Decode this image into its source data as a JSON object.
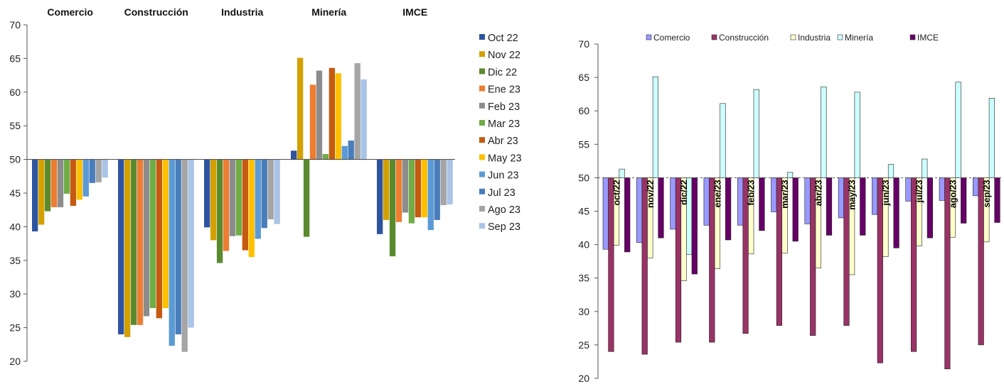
{
  "chart_data": [
    {
      "type": "bar",
      "title": "",
      "baseline": 50,
      "ylim": [
        20,
        70
      ],
      "yticks": [
        "70",
        "65",
        "60",
        "55",
        "50",
        "45",
        "40",
        "35",
        "30",
        "25",
        "20"
      ],
      "categories": [
        "Comercio",
        "Construcción",
        "Industria",
        "Minería",
        "IMCE"
      ],
      "legend_position": "right",
      "series": [
        {
          "name": "Oct 22",
          "color": "#2e54a0",
          "values": [
            39.3,
            24.0,
            39.9,
            51.3,
            38.9
          ]
        },
        {
          "name": "Nov 22",
          "color": "#d4a000",
          "values": [
            40.3,
            23.6,
            38.0,
            65.1,
            41.0
          ]
        },
        {
          "name": "Dic 22",
          "color": "#5b8a2e",
          "values": [
            42.3,
            25.4,
            34.6,
            38.5,
            35.6
          ]
        },
        {
          "name": "Ene 23",
          "color": "#ed7d31",
          "values": [
            42.9,
            25.4,
            36.4,
            61.1,
            40.7
          ]
        },
        {
          "name": "Feb 23",
          "color": "#8c8c8c",
          "values": [
            42.9,
            26.7,
            38.6,
            63.2,
            42.1
          ]
        },
        {
          "name": "Mar 23",
          "color": "#70ad47",
          "values": [
            44.9,
            27.9,
            38.7,
            50.8,
            40.5
          ]
        },
        {
          "name": "Abr 23",
          "color": "#c55a11",
          "values": [
            43.1,
            26.4,
            36.5,
            63.6,
            41.4
          ]
        },
        {
          "name": "May 23",
          "color": "#ffc000",
          "values": [
            44.0,
            27.9,
            35.5,
            62.8,
            41.4
          ]
        },
        {
          "name": "Jun 23",
          "color": "#5b9bd5",
          "values": [
            44.5,
            22.3,
            38.2,
            52.0,
            39.5
          ]
        },
        {
          "name": "Jul 23",
          "color": "#4a7dbb",
          "values": [
            46.5,
            24.0,
            39.8,
            52.8,
            41.0
          ]
        },
        {
          "name": "Ago 23",
          "color": "#a5a5a5",
          "values": [
            46.6,
            21.4,
            41.1,
            64.3,
            43.2
          ]
        },
        {
          "name": "Sep 23",
          "color": "#a9c4e6",
          "values": [
            47.3,
            25.0,
            40.4,
            61.9,
            43.3
          ]
        }
      ]
    },
    {
      "type": "bar",
      "title": "",
      "baseline": 50,
      "ylim": [
        20,
        70
      ],
      "yticks": [
        "70",
        "65",
        "60",
        "55",
        "50",
        "45",
        "40",
        "35",
        "30",
        "25",
        "20"
      ],
      "categories": [
        "oct/22",
        "nov/22",
        "dic/22",
        "ene/23",
        "feb/23",
        "mar/23",
        "abr/23",
        "may/23",
        "jun/23",
        "jul/23",
        "ago/23",
        "sep/23"
      ],
      "legend_position": "top",
      "series": [
        {
          "name": "Comercio",
          "color": "#9999ff",
          "values": [
            39.3,
            40.3,
            42.3,
            42.9,
            42.9,
            44.9,
            43.1,
            44.0,
            44.5,
            46.5,
            46.6,
            47.3
          ]
        },
        {
          "name": "Construcción",
          "color": "#993366",
          "values": [
            24.0,
            23.6,
            25.4,
            25.4,
            26.7,
            27.9,
            26.4,
            27.9,
            22.3,
            24.0,
            21.4,
            25.0
          ]
        },
        {
          "name": "Industria",
          "color": "#ffffcc",
          "values": [
            39.9,
            38.0,
            34.6,
            36.4,
            38.6,
            38.7,
            36.5,
            35.5,
            38.2,
            39.8,
            41.1,
            40.4
          ]
        },
        {
          "name": "Minería",
          "color": "#ccffff",
          "values": [
            51.3,
            65.1,
            38.5,
            61.1,
            63.2,
            50.8,
            63.6,
            62.8,
            52.0,
            52.8,
            64.3,
            61.9
          ]
        },
        {
          "name": "IMCE",
          "color": "#660066",
          "values": [
            38.9,
            41.0,
            35.6,
            40.7,
            42.1,
            40.5,
            41.4,
            41.4,
            39.5,
            41.0,
            43.2,
            43.3
          ]
        }
      ]
    }
  ]
}
